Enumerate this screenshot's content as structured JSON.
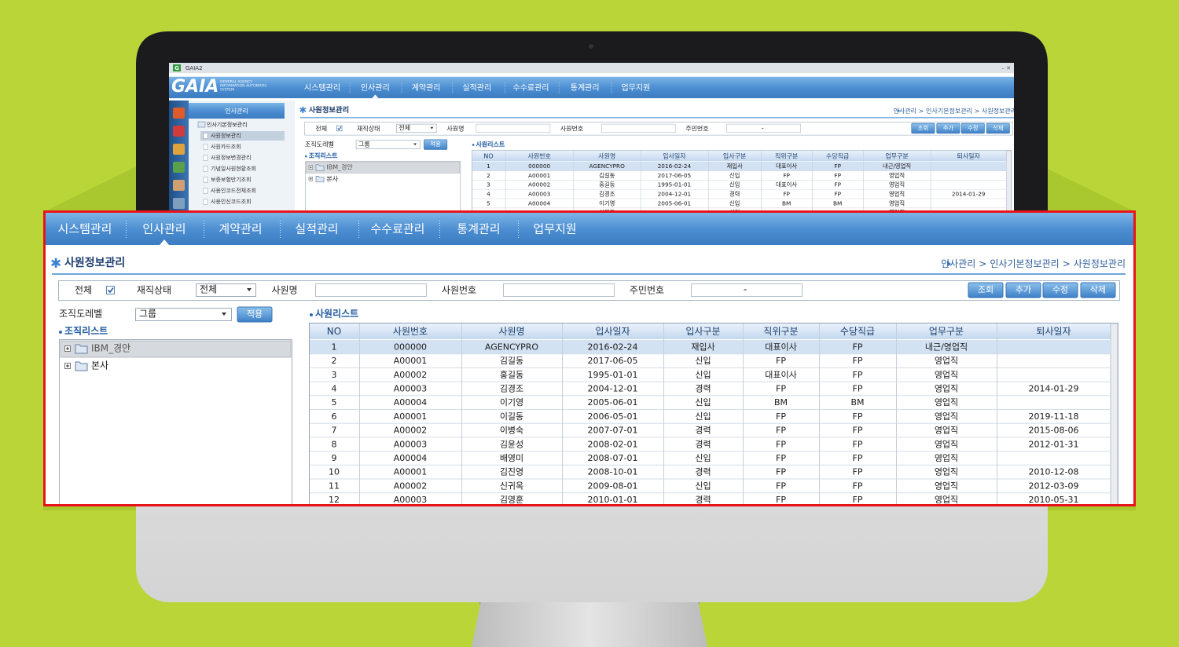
{
  "window_title": "GAIA2",
  "logo": {
    "icon": "G",
    "name": "GAIA",
    "subtitle": [
      "GENERAL AGENCY",
      "INFORMATION AUTOMATIC",
      "SYSTEM"
    ]
  },
  "nav": {
    "items": [
      "시스템관리",
      "인사관리",
      "계약관리",
      "실적관리",
      "수수료관리",
      "통계관리",
      "업무지원"
    ],
    "active": 1
  },
  "sidebar": {
    "title": "인사관리",
    "group": "인사기본정보관리",
    "items": [
      "사원정보관리",
      "사원카드조회",
      "사원정보변경관리",
      "기념일사원현황조회",
      "보증보험만기조회",
      "사용인코드전체조회",
      "사용인신코드조회"
    ],
    "selected": 0
  },
  "page": {
    "title": "사원정보관리",
    "breadcrumb": [
      "인사관리",
      "인사기본정보관리",
      "사원정보관리"
    ],
    "separator": ">"
  },
  "search": {
    "all_label": "전체",
    "all_checked": true,
    "status_label": "재직상태",
    "status_value": "전체",
    "name_label": "사원명",
    "number_label": "사원번호",
    "id_label": "주민번호",
    "id_value": "-",
    "buttons": [
      "조회",
      "추가",
      "수정",
      "삭제"
    ]
  },
  "org": {
    "level_label": "조직도레벨",
    "level_value": "그룹",
    "apply": "적용",
    "title": "조직리스트",
    "nodes": [
      "IBM_경안",
      "본사"
    ],
    "selected": 0
  },
  "employees": {
    "title": "사원리스트",
    "columns": [
      "NO",
      "사원번호",
      "사원명",
      "입사일자",
      "입사구분",
      "직위구분",
      "수당직급",
      "업무구분",
      "퇴사일자"
    ],
    "selected": 0,
    "rows": [
      [
        1,
        "000000",
        "AGENCYPRO",
        "2016-02-24",
        "재입사",
        "대표이사",
        "FP",
        "내근/영업직",
        null
      ],
      [
        2,
        "A00001",
        "김길동",
        "2017-06-05",
        "신입",
        "FP",
        "FP",
        "영업직",
        null
      ],
      [
        3,
        "A00002",
        "홍길동",
        "1995-01-01",
        "신입",
        "대표이사",
        "FP",
        "영업직",
        null
      ],
      [
        4,
        "A00003",
        "김경조",
        "2004-12-01",
        "경력",
        "FP",
        "FP",
        "영업직",
        "2014-01-29"
      ],
      [
        5,
        "A00004",
        "이기영",
        "2005-06-01",
        "신입",
        "BM",
        "BM",
        "영업직",
        null
      ],
      [
        6,
        "A00001",
        "이길동",
        "2006-05-01",
        "신입",
        "FP",
        "FP",
        "영업직",
        "2019-11-18"
      ],
      [
        7,
        "A00002",
        "이병숙",
        "2007-07-01",
        "경력",
        "FP",
        "FP",
        "영업직",
        "2015-08-06"
      ],
      [
        8,
        "A00003",
        "김윤성",
        "2008-02-01",
        "경력",
        "FP",
        "FP",
        "영업직",
        "2012-01-31"
      ],
      [
        9,
        "A00004",
        "배영미",
        "2008-07-01",
        "신입",
        "FP",
        "FP",
        "영업직",
        null
      ],
      [
        10,
        "A00001",
        "김진영",
        "2008-10-01",
        "경력",
        "FP",
        "FP",
        "영업직",
        "2010-12-08"
      ],
      [
        11,
        "A00002",
        "신귀옥",
        "2009-08-01",
        "신입",
        "FP",
        "FP",
        "영업직",
        "2012-03-09"
      ],
      [
        12,
        "A00003",
        "김영훈",
        "2010-01-01",
        "경력",
        "FP",
        "FP",
        "영업직",
        "2010-05-31"
      ]
    ]
  }
}
